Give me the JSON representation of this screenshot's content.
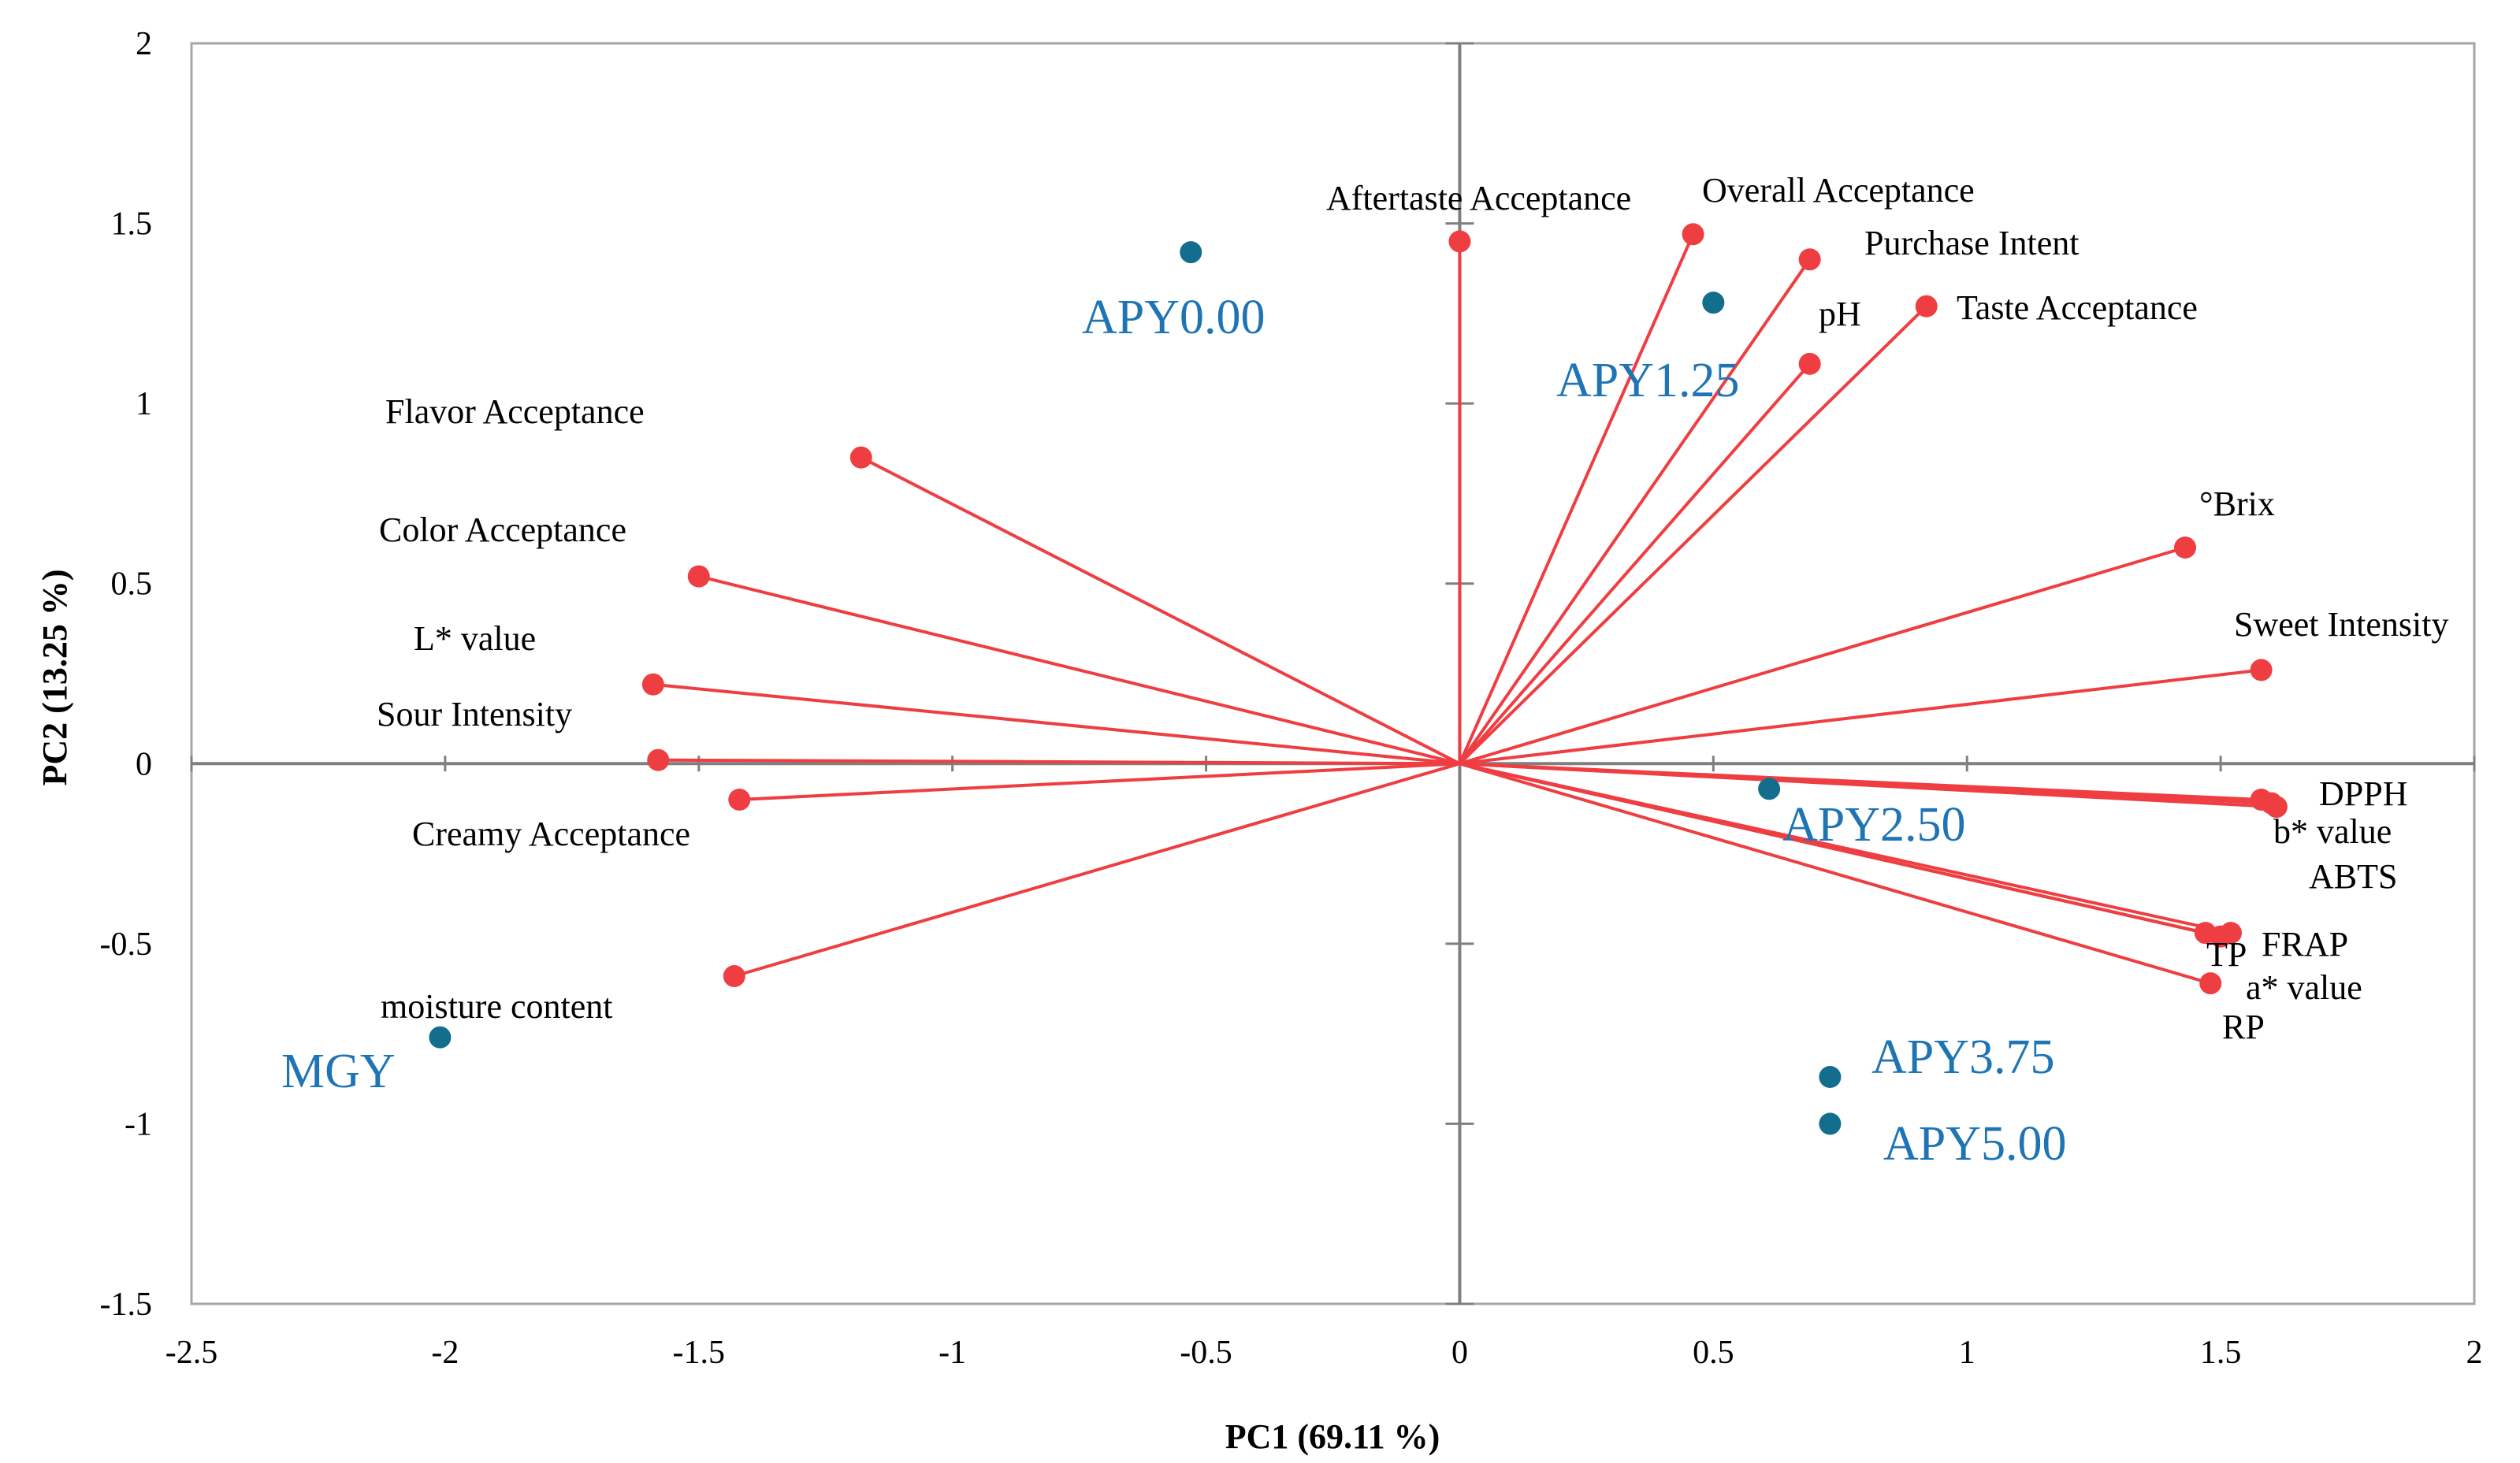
{
  "colors": {
    "variable": "#ef3e42",
    "observation": "#136e8e",
    "observation_label": "#1f74b4",
    "axis": "#7f7f7f",
    "frame": "#a6a6a6"
  },
  "chart_data": {
    "type": "scatter",
    "subtype": "pca-biplot",
    "title": "",
    "xlabel": "PC1 (69.11 %)",
    "ylabel": "PC2 (13.25 %)",
    "xlim": [
      -2.5,
      2
    ],
    "ylim": [
      -1.5,
      2
    ],
    "x_ticks": [
      "-2.5",
      "-2",
      "-1.5",
      "-1",
      "-0.5",
      "0",
      "0.5",
      "1",
      "1.5",
      "2"
    ],
    "y_ticks": [
      "-1.5",
      "-1",
      "-0.5",
      "0",
      "0.5",
      "1",
      "1.5",
      "2"
    ],
    "grid": false,
    "variables": [
      {
        "name": "Aftertaste Acceptance",
        "x": 0.0,
        "y": 1.45
      },
      {
        "name": "Overall Acceptance",
        "x": 0.46,
        "y": 1.47
      },
      {
        "name": "Purchase Intent",
        "x": 0.69,
        "y": 1.4
      },
      {
        "name": "pH",
        "x": 0.69,
        "y": 1.11
      },
      {
        "name": "Taste Acceptance",
        "x": 0.92,
        "y": 1.27
      },
      {
        "name": "Flavor Acceptance",
        "x": -1.18,
        "y": 0.85
      },
      {
        "name": "Color Acceptance",
        "x": -1.5,
        "y": 0.52
      },
      {
        "name": "L* value",
        "x": -1.59,
        "y": 0.22
      },
      {
        "name": "Sour Intensity",
        "x": -1.58,
        "y": 0.01
      },
      {
        "name": "Creamy Acceptance",
        "x": -1.42,
        "y": -0.1
      },
      {
        "name": "moisture content",
        "x": -1.43,
        "y": -0.59
      },
      {
        "name": "°Brix",
        "x": 1.43,
        "y": 0.6
      },
      {
        "name": "Sweet Intensity",
        "x": 1.58,
        "y": 0.26
      },
      {
        "name": "DPPH",
        "x": 1.58,
        "y": -0.1
      },
      {
        "name": "b* value",
        "x": 1.6,
        "y": -0.11
      },
      {
        "name": "ABTS",
        "x": 1.61,
        "y": -0.12
      },
      {
        "name": "FRAP",
        "x": 1.52,
        "y": -0.47
      },
      {
        "name": "TP",
        "x": 1.5,
        "y": -0.48
      },
      {
        "name": "a* value",
        "x": 1.47,
        "y": -0.47
      },
      {
        "name": "RP",
        "x": 1.48,
        "y": -0.61
      }
    ],
    "observations": [
      {
        "name": "APY0.00",
        "x": -0.53,
        "y": 1.42
      },
      {
        "name": "APY1.25",
        "x": 0.5,
        "y": 1.28
      },
      {
        "name": "APY2.50",
        "x": 0.61,
        "y": -0.07
      },
      {
        "name": "APY3.75",
        "x": 0.73,
        "y": -0.87
      },
      {
        "name": "APY5.00",
        "x": 0.73,
        "y": -1.0
      },
      {
        "name": "MGY",
        "x": -2.01,
        "y": -0.76
      }
    ]
  }
}
